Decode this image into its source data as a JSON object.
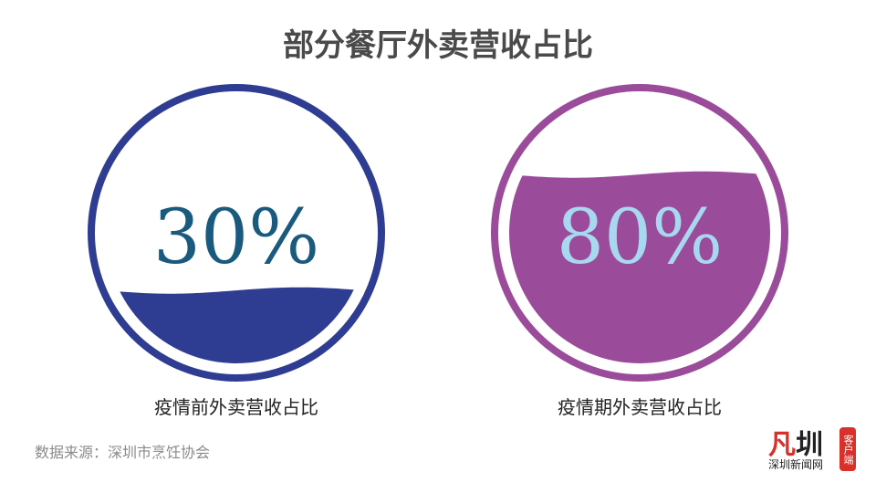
{
  "chart_data": {
    "type": "liquid-fill",
    "title": "部分餐厅外卖营收占比",
    "items": [
      {
        "label": "疫情前外卖营收占比",
        "value": 30,
        "value_label": "30%",
        "color": "#2e3d92",
        "text_color": "#1a5a7e"
      },
      {
        "label": "疫情期外卖营收占比",
        "value": 80,
        "value_label": "80%",
        "color": "#9a4c9a",
        "text_color": "#a8d8f0"
      }
    ]
  },
  "source": "数据来源：深圳市烹饪协会",
  "logo": {
    "main_a": "凡",
    "main_b": "圳",
    "sub": "深圳新闻网",
    "badge": "客户端"
  }
}
